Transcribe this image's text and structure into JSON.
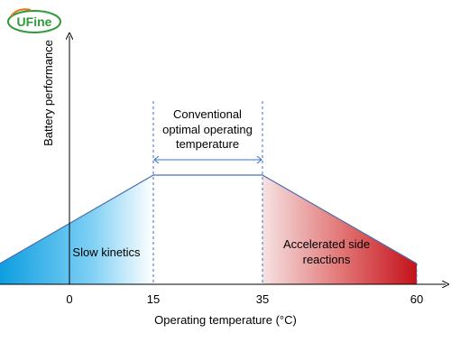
{
  "brand": {
    "logo_text": "UFine"
  },
  "axes": {
    "ylabel": "Battery performance",
    "xlabel": "Operating temperature (°C)",
    "ticks": [
      "0",
      "15",
      "35",
      "60"
    ]
  },
  "regions": {
    "left_label": "Slow kinetics",
    "right_label_line1": "Accelerated side",
    "right_label_line2": "reactions"
  },
  "optimal": {
    "line1": "Conventional",
    "line2": "optimal operating",
    "line3": "temperature"
  },
  "colors": {
    "cold_dark": "#1aa3e0",
    "cold_light": "#ffffff",
    "hot_light": "#f7dcdc",
    "hot_dark": "#c8161d",
    "logo_green": "#2e9a3a",
    "logo_orange": "#e87722",
    "axis": "#000000",
    "guide": "#3a6fc4"
  }
}
